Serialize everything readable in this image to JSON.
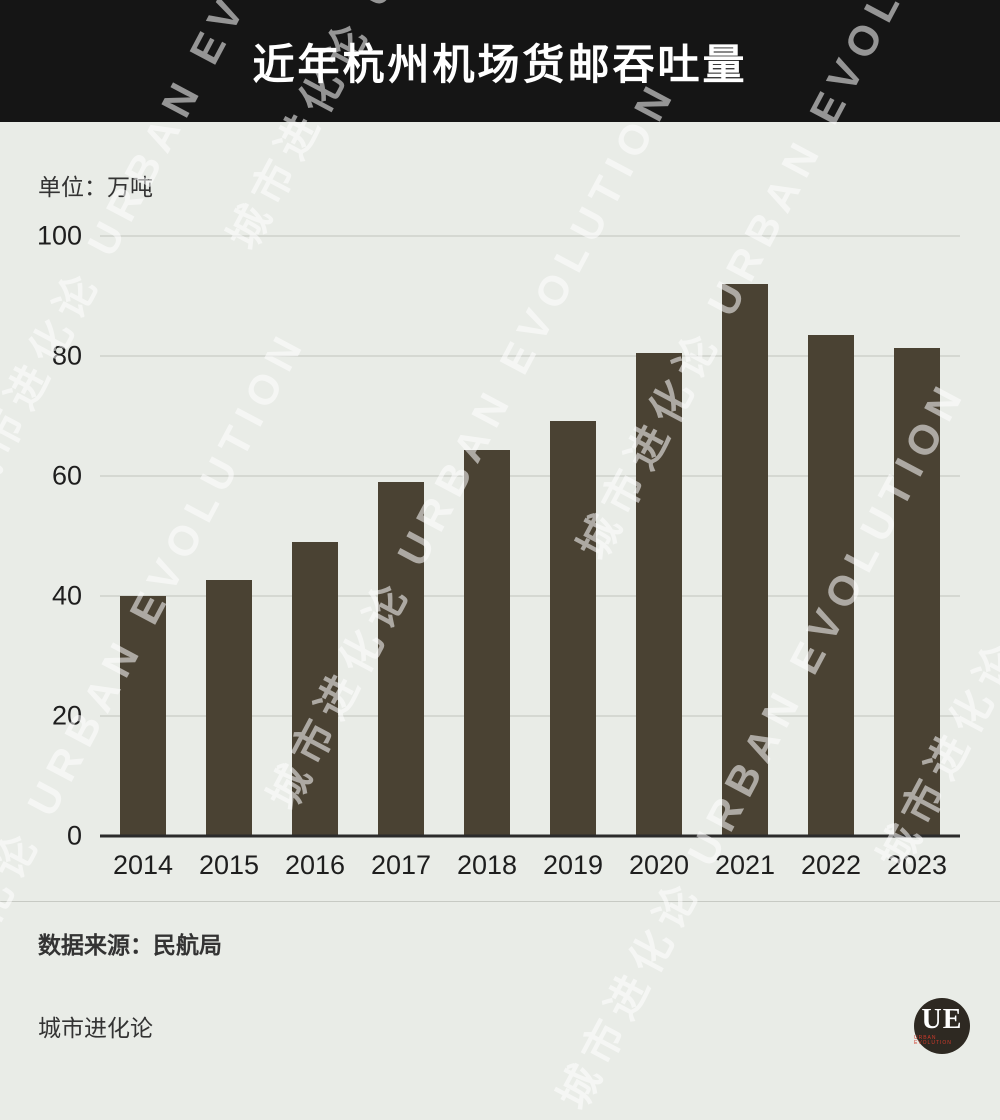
{
  "header": {
    "title": "近年杭州机场货邮吞吐量"
  },
  "chart_data": {
    "type": "bar",
    "title": "近年杭州机场货邮吞吐量",
    "unit_label": "单位：万吨",
    "categories": [
      "2014",
      "2015",
      "2016",
      "2017",
      "2018",
      "2019",
      "2020",
      "2021",
      "2022",
      "2023"
    ],
    "values": [
      40,
      42.6,
      49,
      59,
      64.3,
      69.2,
      80.5,
      92,
      83.5,
      81.3
    ],
    "ylim": [
      0,
      100
    ],
    "yticks": [
      0,
      20,
      40,
      60,
      80,
      100
    ],
    "grid": true,
    "legend": false,
    "bar_color": "#4a4233"
  },
  "footer": {
    "source": "数据来源：民航局",
    "brand": "城市进化论",
    "logo_text": "UE",
    "logo_subtext": "URBAN EVOLUTION"
  },
  "watermark": {
    "text": "城市进化论 URBAN EVOLUTION"
  },
  "colors": {
    "header_bg": "#151515",
    "page_bg": "#e9ece7",
    "bar": "#4a4233",
    "grid": "#d5d8d2",
    "axis": "#2b2b2b",
    "text": "#333333"
  }
}
